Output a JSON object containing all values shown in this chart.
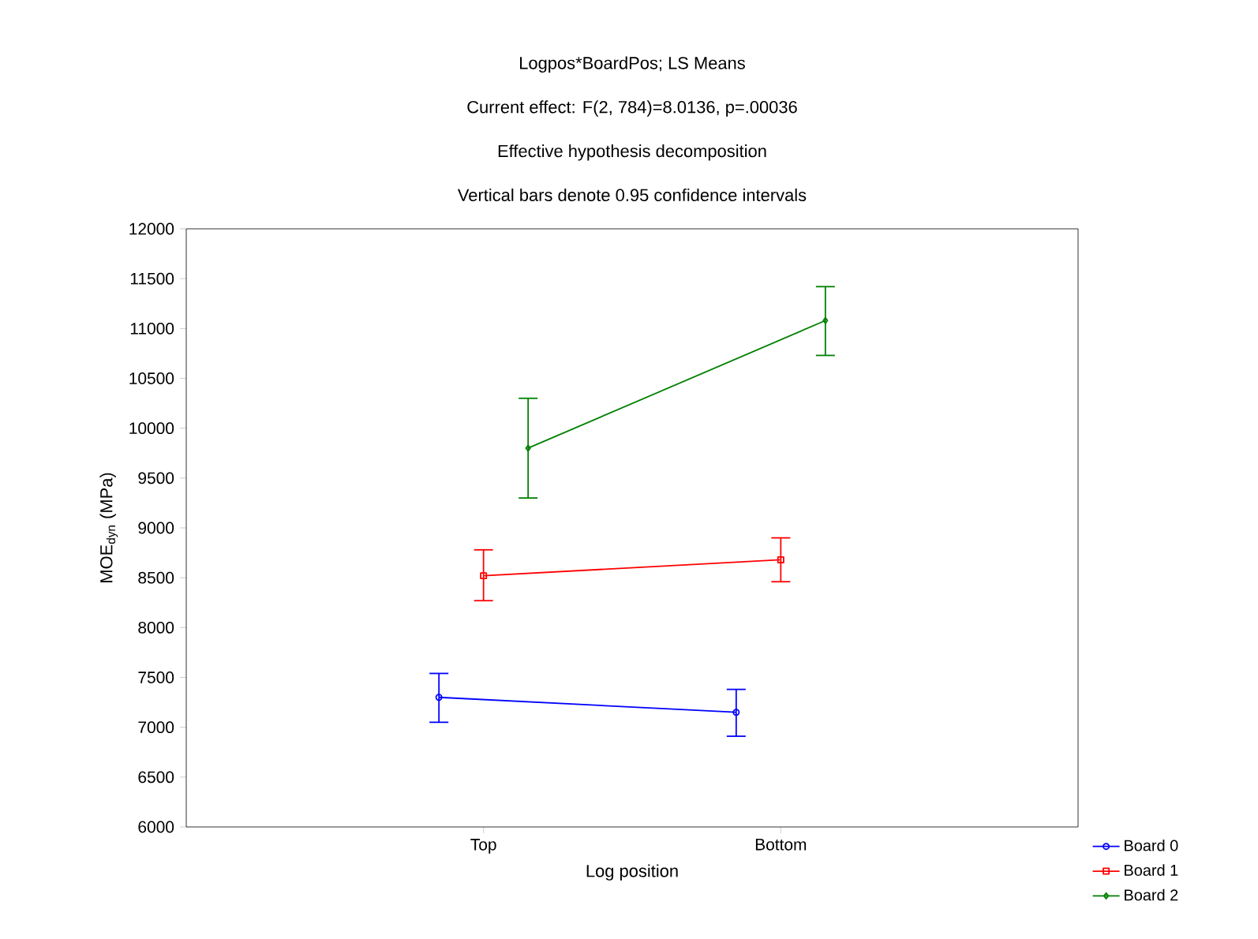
{
  "chart_data": {
    "type": "line",
    "title": "Logpos*BoardPos; LS Means",
    "subtitle": "Current effect: F(2, 784)=8.0136, p=.00036",
    "annotations": [
      "Effective hypothesis decomposition",
      "Vertical bars denote 0.95 confidence intervals"
    ],
    "xlabel": "Log position",
    "ylabel": "MOE$_{dyn}$ (MPa)",
    "categories": [
      "Top",
      "Bottom"
    ],
    "ylim": [
      6000,
      12000
    ],
    "yticks": [
      6000,
      6500,
      7000,
      7500,
      8000,
      8500,
      9000,
      9500,
      10000,
      10500,
      11000,
      11500,
      12000
    ],
    "legend": "bottom right",
    "series": [
      {
        "name": "Board 0",
        "color": "#0000ff",
        "marker": "circle",
        "values": [
          7300,
          7150
        ],
        "errors": [
          [
            7050,
            7540
          ],
          [
            6910,
            7380
          ]
        ]
      },
      {
        "name": "Board 1",
        "color": "#ff0000",
        "marker": "square",
        "values": [
          8520,
          8680
        ],
        "errors": [
          [
            8270,
            8780
          ],
          [
            8460,
            8900
          ]
        ]
      },
      {
        "name": "Board 2",
        "color": "#008000",
        "marker": "diamond",
        "values": [
          9800,
          11080
        ],
        "errors": [
          [
            9300,
            10300
          ],
          [
            10730,
            11420
          ]
        ]
      }
    ]
  }
}
